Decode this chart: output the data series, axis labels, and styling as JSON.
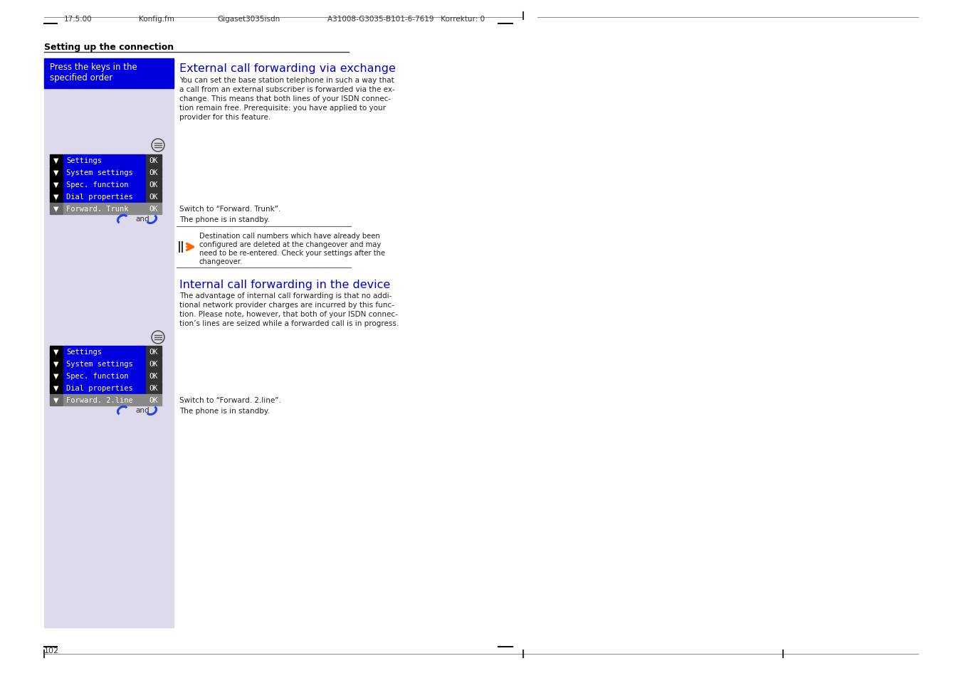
{
  "bg_color": "#ffffff",
  "left_panel_bg": "#dddaeb",
  "blue_header_bg": "#0000dd",
  "blue_row_bg": "#0000dd",
  "gray_row_bg": "#888888",
  "ok_box_bg": "#333333",
  "section_title_color": "#0000cc",
  "body_text_color": "#222222",
  "setting_up_title": "Setting up the connection",
  "press_keys_text": "Press the keys in the\nspecified order",
  "section1_title": "External call forwarding via exchange",
  "section1_body": "You can set the base station telephone in such a way that\na call from an external subscriber is forwarded via the ex-\nchange. This means that both lines of your ISDN connec-\ntion remain free. Prerequisite: you have applied to your\nprovider for this feature.",
  "section2_title": "Internal call forwarding in the device",
  "section2_body": "The advantage of internal call forwarding is that no addi-\ntional network provider charges are incurred by this func-\ntion. Please note, however, that both of your ISDN connec-\ntion’s lines are seized while a forwarded call is in progress.",
  "menu_rows_blue": [
    "Settings",
    "System settings",
    "Spec. function",
    "Dial properties"
  ],
  "menu_row1_last": "Forward. Trunk",
  "menu_row2_last": "Forward. 2.line",
  "switch_text1": "Switch to “Forward. Trunk”.",
  "standby_text1": "The phone is in standby.",
  "switch_text2": "Switch to “Forward. 2.line”.",
  "standby_text2": "The phone is in standby.",
  "note_text": "Destination call numbers which have already been\nconfigured are deleted at the changeover and may\nneed to be re-entered. Check your settings after the\nchangeover.",
  "header_line1": "17.5.00",
  "header_line2": "Konfig.fm",
  "header_line3": "Gigaset3035isdn",
  "header_line4": "A31008-G3035-B101-6-7619   Korrektur: 0",
  "footer_page": "102"
}
